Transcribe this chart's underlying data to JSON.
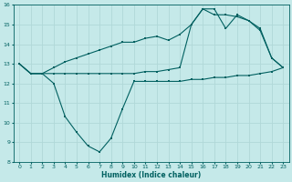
{
  "xlabel": "Humidex (Indice chaleur)",
  "xlim": [
    -0.5,
    23.5
  ],
  "ylim": [
    8,
    16
  ],
  "yticks": [
    8,
    9,
    10,
    11,
    12,
    13,
    14,
    15,
    16
  ],
  "xticks": [
    0,
    1,
    2,
    3,
    4,
    5,
    6,
    7,
    8,
    9,
    10,
    11,
    12,
    13,
    14,
    15,
    16,
    17,
    18,
    19,
    20,
    21,
    22,
    23
  ],
  "bg_color": "#c5e9e9",
  "grid_color": "#b0d8d8",
  "line_color": "#006060",
  "curve1_x": [
    0,
    1,
    2,
    3,
    4,
    5,
    6,
    7,
    8,
    9,
    10,
    11,
    12,
    13,
    14,
    15,
    16,
    17,
    18,
    19,
    20,
    21,
    22,
    23
  ],
  "curve1_y": [
    13.0,
    12.5,
    12.5,
    12.0,
    10.3,
    9.5,
    8.8,
    8.5,
    9.2,
    10.7,
    12.1,
    12.1,
    12.1,
    12.1,
    12.1,
    12.2,
    12.2,
    12.3,
    12.3,
    12.4,
    12.4,
    12.5,
    12.6,
    12.8
  ],
  "curve2_x": [
    0,
    1,
    2,
    3,
    4,
    5,
    6,
    7,
    8,
    9,
    10,
    11,
    12,
    13,
    14,
    15,
    16,
    17,
    18,
    19,
    20,
    21,
    22,
    23
  ],
  "curve2_y": [
    13.0,
    12.5,
    12.5,
    12.8,
    13.1,
    13.3,
    13.5,
    13.7,
    13.9,
    14.1,
    14.1,
    14.3,
    14.4,
    14.2,
    14.5,
    15.0,
    15.8,
    15.5,
    15.5,
    15.4,
    15.2,
    14.7,
    13.3,
    12.8
  ],
  "curve3_x": [
    0,
    1,
    2,
    3,
    4,
    5,
    6,
    7,
    8,
    9,
    10,
    11,
    12,
    13,
    14,
    15,
    16,
    17,
    18,
    19,
    20,
    21,
    22,
    23
  ],
  "curve3_y": [
    13.0,
    12.5,
    12.5,
    12.5,
    12.5,
    12.5,
    12.5,
    12.5,
    12.5,
    12.5,
    12.5,
    12.6,
    12.6,
    12.7,
    12.8,
    15.0,
    15.8,
    15.8,
    14.8,
    15.5,
    15.2,
    14.8,
    13.3,
    12.8
  ]
}
